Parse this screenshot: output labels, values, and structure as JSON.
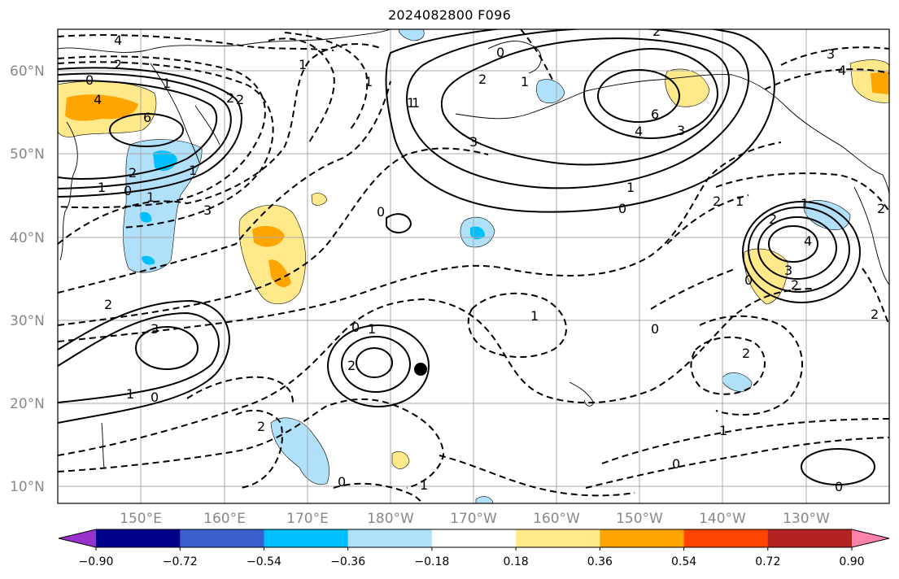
{
  "title": "2024082800 F096",
  "map": {
    "projection": "PlateCarree",
    "lon_range_deg_east": [
      140,
      240
    ],
    "lat_range": [
      8,
      65
    ],
    "gridlines": true,
    "lat_labels": [
      "10°N",
      "20°N",
      "30°N",
      "40°N",
      "50°N",
      "60°N"
    ],
    "lon_labels": [
      "150°E",
      "160°E",
      "170°E",
      "180°W",
      "170°W",
      "160°W",
      "150°W",
      "140°W",
      "130°W"
    ],
    "contour_style": "solid for positive, dashed for negative, black lines",
    "contour_labels": [
      "4",
      "2",
      "0",
      "1",
      "4",
      "6",
      "2",
      "1",
      "3",
      "2",
      "0",
      "1",
      "1",
      "2",
      "1",
      "0",
      "1",
      "0",
      "3",
      "1",
      "2",
      "3",
      "1",
      "0",
      "2",
      "0",
      "1",
      "0",
      "2",
      "1",
      "2",
      "6",
      "3",
      "4",
      "3",
      "4",
      "1",
      "1",
      "2",
      "0",
      "2",
      "1",
      "2",
      "3",
      "4",
      "2",
      "1",
      "2",
      "2",
      "2",
      "0",
      "1",
      "1",
      "0",
      "1",
      "0",
      "0"
    ],
    "marker": {
      "type": "filled-circle",
      "lon": -175.8,
      "lat": 24.2
    }
  },
  "colorbar": {
    "ticks": [
      "−0.90",
      "−0.72",
      "−0.54",
      "−0.36",
      "−0.18",
      "0.18",
      "0.36",
      "0.54",
      "0.72",
      "0.90"
    ],
    "colors": [
      "#9932cc",
      "#00008b",
      "#3a5fcd",
      "#00bfff",
      "#b0e0fa",
      "#ffffff",
      "#ffe98a",
      "#ffa500",
      "#ff4500",
      "#b22222",
      "#ff82ab"
    ],
    "extend": "both"
  }
}
